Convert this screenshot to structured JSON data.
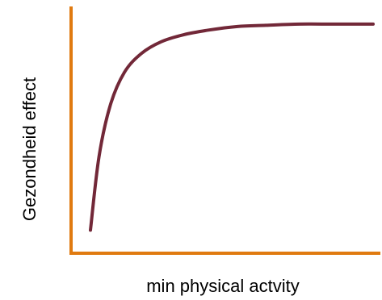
{
  "chart_data": {
    "type": "line",
    "title": "",
    "xlabel": "min physical actvity",
    "ylabel": "Gezondheid effect",
    "grid": false,
    "legend": "none",
    "axis_color": "#e07a10",
    "series": [
      {
        "color": "#722838",
        "points": [
          [
            0,
            0.05
          ],
          [
            0.03,
            0.36
          ],
          [
            0.07,
            0.58
          ],
          [
            0.12,
            0.72
          ],
          [
            0.18,
            0.8
          ],
          [
            0.25,
            0.85
          ],
          [
            0.33,
            0.88
          ],
          [
            0.42,
            0.9
          ],
          [
            0.52,
            0.915
          ],
          [
            0.62,
            0.92
          ],
          [
            0.74,
            0.925
          ],
          [
            0.86,
            0.925
          ],
          [
            1,
            0.925
          ]
        ]
      }
    ]
  }
}
